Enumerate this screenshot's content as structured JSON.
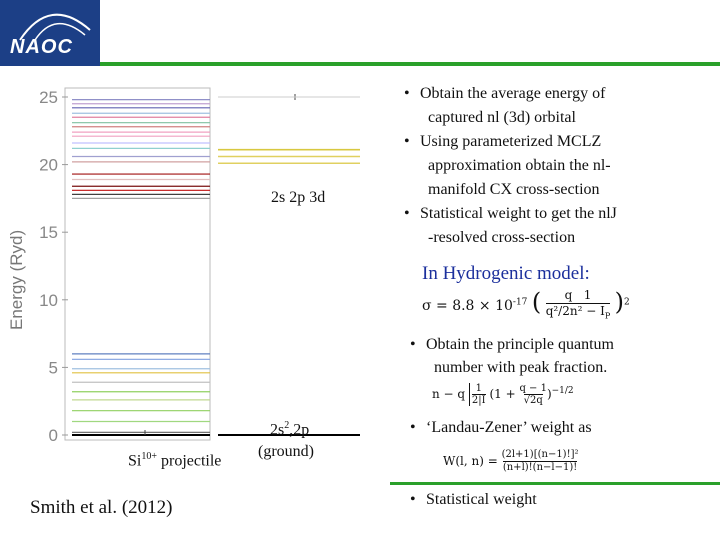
{
  "header": {
    "logo_text": "NAOC",
    "brand_color": "#1c3f86",
    "accent_line_color": "#2aa02a"
  },
  "figure": {
    "y_axis_label": "Energy  (Ryd)",
    "y_ticks": [
      {
        "value": 0,
        "label": "0"
      },
      {
        "value": 5,
        "label": "5"
      },
      {
        "value": 10,
        "label": "10"
      },
      {
        "value": 15,
        "label": "15"
      },
      {
        "value": 20,
        "label": "20"
      },
      {
        "value": 25,
        "label": "25"
      }
    ],
    "ylim": [
      0,
      25.5
    ],
    "left_column_levels": [
      {
        "energy": 24.8,
        "color": "#8080c0"
      },
      {
        "energy": 24.5,
        "color": "#c0a0d0"
      },
      {
        "energy": 24.2,
        "color": "#6060b0"
      },
      {
        "energy": 23.8,
        "color": "#a0c0e0"
      },
      {
        "energy": 23.5,
        "color": "#e080a0"
      },
      {
        "energy": 23.1,
        "color": "#80c0a0"
      },
      {
        "energy": 22.8,
        "color": "#d08080"
      },
      {
        "energy": 22.4,
        "color": "#f0a0c0"
      },
      {
        "energy": 22.1,
        "color": "#f0a0c0"
      },
      {
        "energy": 21.6,
        "color": "#c0c0ff"
      },
      {
        "energy": 21.2,
        "color": "#90d0d0"
      },
      {
        "energy": 20.6,
        "color": "#a0a0d0"
      },
      {
        "energy": 20.2,
        "color": "#d0a0a0"
      },
      {
        "energy": 19.3,
        "color": "#a01010"
      },
      {
        "energy": 18.9,
        "color": "#e0c0c0"
      },
      {
        "energy": 18.4,
        "color": "#7a1010"
      },
      {
        "energy": 18.1,
        "color": "#c01010"
      },
      {
        "energy": 17.8,
        "color": "#404040"
      },
      {
        "energy": 17.5,
        "color": "#a0a0a0"
      },
      {
        "energy": 6.0,
        "color": "#6080c0"
      },
      {
        "energy": 5.6,
        "color": "#80a0e0"
      },
      {
        "energy": 4.9,
        "color": "#a0c0e0"
      },
      {
        "energy": 4.6,
        "color": "#e0c040"
      },
      {
        "energy": 3.9,
        "color": "#c0c0c0"
      },
      {
        "energy": 3.2,
        "color": "#90d060"
      },
      {
        "energy": 2.6,
        "color": "#c0d890"
      },
      {
        "energy": 1.8,
        "color": "#90d060"
      },
      {
        "energy": 1.0,
        "color": "#a0d880"
      },
      {
        "energy": 0.2,
        "color": "#606060"
      },
      {
        "energy": 0.0,
        "color": "#000000"
      }
    ],
    "right_column_levels": [
      {
        "energy": 21.1,
        "color": "#d8c840"
      },
      {
        "energy": 20.6,
        "color": "#e0d060"
      },
      {
        "energy": 20.1,
        "color": "#e0d060"
      },
      {
        "energy": 0.0,
        "color": "#000000"
      }
    ],
    "label_2s2p3d": "2s 2p 3d",
    "label_ground_prefix": "2s",
    "label_ground_sup": "2",
    "label_ground_suffix": ",2p",
    "label_ground_paren": "(ground)",
    "label_projectile_prefix": "Si",
    "label_projectile_sup": "10+",
    "label_projectile_suffix": " projectile"
  },
  "bullets": [
    {
      "dot": "•",
      "lines": [
        "Obtain the average energy of",
        "captured nl (3d) orbital"
      ]
    },
    {
      "dot": "•",
      "lines": [
        "Using parameterized MCLZ",
        "approximation obtain the nl-",
        "manifold CX cross-section"
      ]
    },
    {
      "dot": "•",
      "lines": [
        "Statistical weight to get the nlJ",
        "-resolved cross-section"
      ]
    }
  ],
  "hydrogenic": {
    "title": "In Hydrogenic model:",
    "formula_sigma": "σ = 8.8 × 10",
    "formula_sigma_exp": "-17",
    "formula_q": "q",
    "formula_one": "1",
    "formula_denom": "q²/2n² − I",
    "formula_denom_sub": "P",
    "formula_exp": "2",
    "bullet_quantum": [
      "Obtain the principle quantum",
      "number with peak fraction."
    ],
    "formula_n": "n − q",
    "formula_n_frac_top": "1",
    "formula_n_frac_bottom": "2|I",
    "formula_n_term": "(1 + ",
    "formula_n_term2": "q − 1",
    "formula_n_term3": "√2q",
    "formula_n_exp": "−1/2",
    "bullet_landau": "‘Landau-Zener’ weight as",
    "formula_w": "W(l, n) =",
    "formula_w_top": "(2l+1)[(n−1)!]²",
    "formula_w_bottom": "(n+l)!(n−l−1)!",
    "bullet_stat": "Statistical weight"
  },
  "citation": "Smith et al. (2012)"
}
